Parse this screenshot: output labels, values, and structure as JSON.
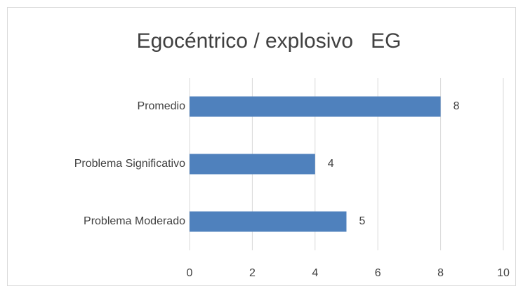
{
  "chart_data": {
    "type": "bar",
    "orientation": "horizontal",
    "title": "Egocéntrico / explosivo   EG",
    "categories": [
      "Promedio",
      "Problema Significativo",
      "Problema Moderado"
    ],
    "values": [
      8,
      4,
      5
    ],
    "color": "#4f81bd",
    "xlim": [
      0,
      10
    ],
    "xticks": [
      0,
      2,
      4,
      6,
      8,
      10
    ],
    "grid": true,
    "data_labels": true
  }
}
